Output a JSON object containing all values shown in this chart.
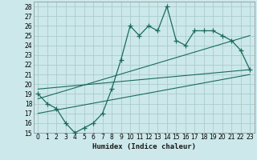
{
  "title": "",
  "xlabel": "Humidex (Indice chaleur)",
  "bg_color": "#cce8ea",
  "grid_color": "#aacccc",
  "line_color": "#1a6b5a",
  "xlim": [
    -0.5,
    23.5
  ],
  "ylim": [
    15,
    28.5
  ],
  "yticks": [
    15,
    16,
    17,
    18,
    19,
    20,
    21,
    22,
    23,
    24,
    25,
    26,
    27,
    28
  ],
  "xticks": [
    0,
    1,
    2,
    3,
    4,
    5,
    6,
    7,
    8,
    9,
    10,
    11,
    12,
    13,
    14,
    15,
    16,
    17,
    18,
    19,
    20,
    21,
    22,
    23
  ],
  "main_line_x": [
    0,
    1,
    2,
    3,
    4,
    5,
    6,
    7,
    8,
    9,
    10,
    11,
    12,
    13,
    14,
    15,
    16,
    17,
    18,
    19,
    20,
    21,
    22,
    23
  ],
  "main_line_y": [
    19,
    18,
    17.5,
    16,
    15,
    15.5,
    16,
    17,
    19.5,
    22.5,
    26,
    25,
    26,
    25.5,
    28,
    24.5,
    24,
    25.5,
    25.5,
    25.5,
    25,
    24.5,
    23.5,
    21.5
  ],
  "line1_x": [
    0,
    23
  ],
  "line1_y": [
    19.5,
    21.5
  ],
  "line2_x": [
    0,
    23
  ],
  "line2_y": [
    18.5,
    25
  ],
  "line3_x": [
    0,
    23
  ],
  "line3_y": [
    17,
    21
  ]
}
